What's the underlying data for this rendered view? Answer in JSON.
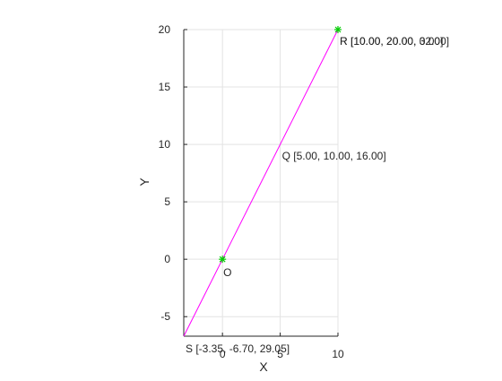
{
  "chart_data": {
    "type": "line",
    "title": "",
    "xlabel": "X",
    "ylabel": "Y",
    "xlim": [
      -3.35,
      10
    ],
    "ylim": [
      -6.7,
      20
    ],
    "xticks": [
      0,
      5,
      10
    ],
    "yticks": [
      -5,
      0,
      5,
      10,
      15,
      20
    ],
    "grid": true,
    "series": [
      {
        "points": [
          [
            -3.35,
            -6.7
          ],
          [
            10,
            20
          ]
        ],
        "color": "#ff00ff"
      }
    ],
    "markers": [
      {
        "x": 0,
        "y": 0,
        "color": "#00cc00"
      },
      {
        "x": 10,
        "y": 20,
        "color": "#00cc00"
      }
    ],
    "annotations": [
      {
        "text": "R [10.00, 20.00, 0.00]",
        "x": 10,
        "y": 20
      },
      {
        "text": "R [10.00, 20.00, 32.00]",
        "x": 10,
        "y": 20
      },
      {
        "text": "Q [5.00, 10.00, 16.00]",
        "x": 5,
        "y": 10
      },
      {
        "text": "O",
        "x": 0,
        "y": 0
      },
      {
        "text": "S [-3.35, -6.70, 29.05]",
        "x": -3.35,
        "y": -6.7
      }
    ]
  }
}
